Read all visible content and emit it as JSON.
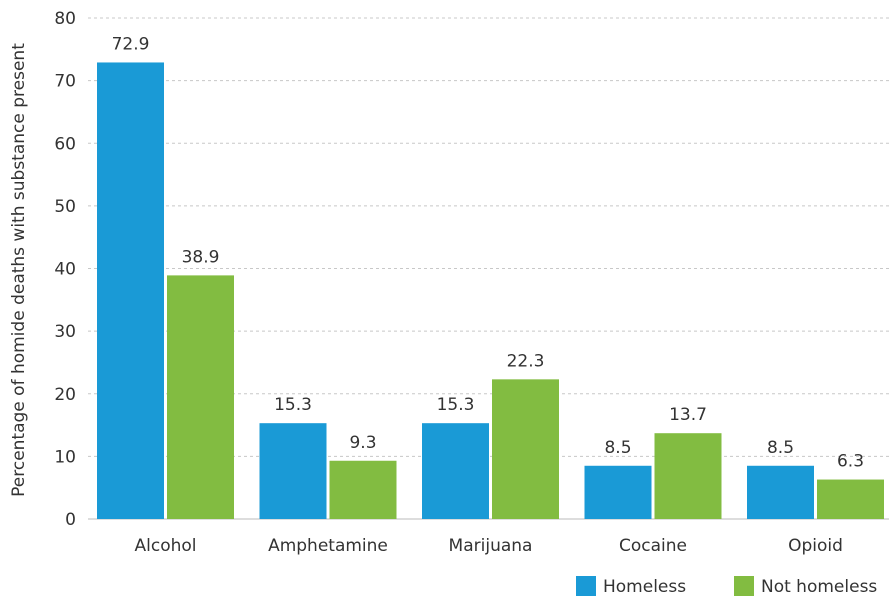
{
  "chart_data": {
    "type": "bar",
    "title": "",
    "xlabel": "",
    "ylabel": "Percentage of homide deaths with substance present",
    "categories": [
      "Alcohol",
      "Amphetamine",
      "Marijuana",
      "Cocaine",
      "Opioid"
    ],
    "series": [
      {
        "name": "Homeless",
        "color": "#1a9ad6",
        "values": [
          72.9,
          15.3,
          15.3,
          8.5,
          8.5
        ],
        "labels": [
          "72.9",
          "15.3",
          "15.3",
          "8.5",
          "8.5"
        ]
      },
      {
        "name": "Not homeless",
        "color": "#82bc41",
        "values": [
          38.9,
          9.3,
          22.3,
          13.7,
          6.3
        ],
        "labels": [
          "38.9",
          "9.3",
          "22.3",
          "13.7",
          "6.3"
        ]
      }
    ],
    "ylim": [
      0,
      80
    ],
    "yticks": [
      "0",
      "10",
      "20",
      "30",
      "40",
      "50",
      "60",
      "70",
      "80"
    ],
    "grid": true,
    "legend_position": "bottom-right"
  }
}
